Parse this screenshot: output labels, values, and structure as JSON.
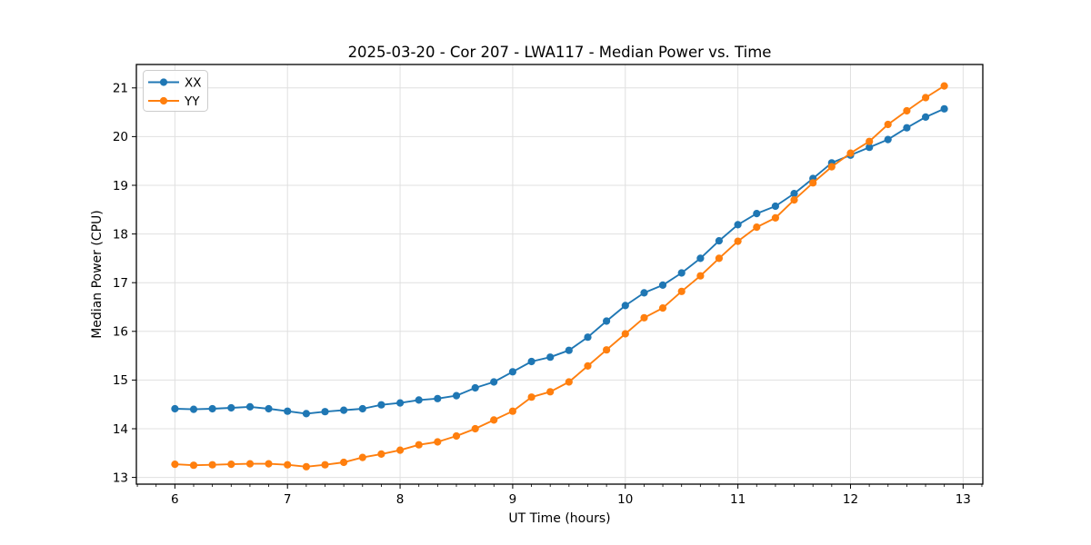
{
  "chart_data": {
    "type": "line",
    "title": "2025-03-20 - Cor 207 - LWA117 - Median Power vs. Time",
    "xlabel": "UT Time (hours)",
    "ylabel": "Median Power (CPU)",
    "xlim": [
      5.658,
      13.175
    ],
    "ylim": [
      12.862,
      21.481
    ],
    "x_ticks": [
      6,
      7,
      8,
      9,
      10,
      11,
      12,
      13
    ],
    "y_ticks": [
      13,
      14,
      15,
      16,
      17,
      18,
      19,
      20,
      21
    ],
    "x_minor_step": 0.166667,
    "grid": true,
    "grid_color": "#e0e0e0",
    "spine_color": "#000000",
    "legend_position": "upper-left",
    "legend_labels": [
      "XX",
      "YY"
    ],
    "x": [
      6.0,
      6.167,
      6.333,
      6.5,
      6.667,
      6.833,
      7.0,
      7.167,
      7.333,
      7.5,
      7.667,
      7.833,
      8.0,
      8.167,
      8.333,
      8.5,
      8.667,
      8.833,
      9.0,
      9.167,
      9.333,
      9.5,
      9.667,
      9.833,
      10.0,
      10.167,
      10.333,
      10.5,
      10.667,
      10.833,
      11.0,
      11.167,
      11.333,
      11.5,
      11.667,
      11.833,
      12.0,
      12.167,
      12.333,
      12.5,
      12.667,
      12.833
    ],
    "series": [
      {
        "name": "XX",
        "color": "#1f77b4",
        "values": [
          14.41,
          14.4,
          14.41,
          14.43,
          14.45,
          14.41,
          14.36,
          14.31,
          14.35,
          14.38,
          14.41,
          14.49,
          14.53,
          14.59,
          14.62,
          14.68,
          14.84,
          14.96,
          15.17,
          15.38,
          15.47,
          15.61,
          15.88,
          16.21,
          16.53,
          16.79,
          16.95,
          17.2,
          17.5,
          17.86,
          18.19,
          18.42,
          18.57,
          18.83,
          19.14,
          19.46,
          19.62,
          19.78,
          19.94,
          20.18,
          20.4,
          20.57
        ]
      },
      {
        "name": "YY",
        "color": "#ff7f0e",
        "values": [
          13.27,
          13.25,
          13.26,
          13.27,
          13.28,
          13.28,
          13.26,
          13.22,
          13.26,
          13.31,
          13.41,
          13.48,
          13.56,
          13.67,
          13.73,
          13.85,
          14.0,
          14.18,
          14.36,
          14.65,
          14.76,
          14.96,
          15.29,
          15.62,
          15.95,
          16.28,
          16.48,
          16.82,
          17.14,
          17.5,
          17.85,
          18.14,
          18.33,
          18.7,
          19.05,
          19.38,
          19.66,
          19.9,
          20.25,
          20.53,
          20.8,
          21.04
        ]
      }
    ]
  }
}
